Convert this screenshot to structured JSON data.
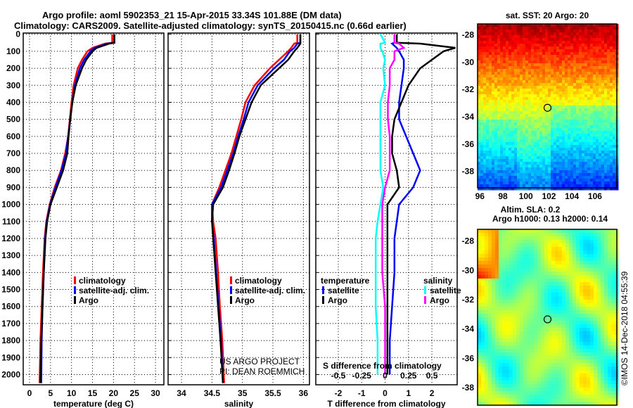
{
  "title_line1": "Argo profile: aoml 5902353_21 15-Apr-2015 33.34S 101.88E (DM data)",
  "title_line2": "Climatology: CARS2009. Satellite-adjusted climatology: synTS_20150415.nc (0.66d earlier)",
  "credit_line1": "US ARGO PROJECT",
  "credit_line2": "PI: DEAN ROEMMICH",
  "timestamp": "©IMOS 14-Dec-2018 04:55:39",
  "colors": {
    "climatology": "#ff0000",
    "satellite": "#0000ff",
    "argo": "#000000",
    "s_satellite": "#00ffff",
    "s_argo": "#ff00ff"
  },
  "chart_data": [
    {
      "type": "line",
      "name": "temperature",
      "xlabel": "temperature (deg C)",
      "ylabel": "depth",
      "xlim": [
        -1.5,
        32
      ],
      "ylim": [
        2060,
        0
      ],
      "xticks": [
        0,
        5,
        10,
        15,
        20,
        25,
        30
      ],
      "yticks": [
        0,
        100,
        200,
        300,
        400,
        500,
        600,
        700,
        800,
        900,
        1000,
        1100,
        1200,
        1300,
        1400,
        1500,
        1600,
        1700,
        1800,
        1900,
        2000
      ],
      "depth": [
        0,
        50,
        55,
        80,
        100,
        150,
        200,
        300,
        400,
        500,
        600,
        700,
        800,
        900,
        1000,
        1100,
        1200,
        1400,
        1600,
        1800,
        2050
      ],
      "series": [
        {
          "name": "climatology",
          "values": [
            19.7,
            19.7,
            18,
            15,
            13.8,
            12.5,
            11.5,
            10.5,
            10,
            9.6,
            9.2,
            8.5,
            7.5,
            6,
            4.8,
            4,
            3.6,
            3.2,
            2.9,
            2.6,
            2.4
          ]
        },
        {
          "name": "satellite-adj. clim.",
          "values": [
            20.2,
            20.2,
            18.5,
            15.5,
            14.5,
            13,
            12,
            10.8,
            10.2,
            9.7,
            9.2,
            8.7,
            7.6,
            6.2,
            4.9,
            4.1,
            3.7,
            3.4,
            3.1,
            2.9,
            2.8
          ]
        },
        {
          "name": "Argo",
          "values": [
            20.2,
            20.2,
            19,
            16,
            15,
            13.5,
            12.5,
            11,
            10.2,
            9.7,
            9.3,
            9,
            8,
            6.5,
            5,
            4.2,
            3.8,
            3.4,
            3.1,
            2.8,
            2.6
          ]
        }
      ],
      "legend": [
        "climatology",
        "satellite-adj. clim.",
        "Argo"
      ]
    },
    {
      "type": "line",
      "name": "salinity",
      "xlabel": "salinity",
      "xlim": [
        33.78,
        36.1
      ],
      "ylim": [
        2060,
        0
      ],
      "xticks": [
        34,
        34.5,
        35,
        35.5,
        36
      ],
      "depth": [
        0,
        50,
        55,
        80,
        100,
        150,
        200,
        300,
        400,
        500,
        600,
        700,
        800,
        900,
        1000,
        1100,
        1200,
        1400,
        1600,
        1800,
        2050
      ],
      "series": [
        {
          "name": "climatology",
          "values": [
            35.9,
            35.9,
            35.85,
            35.8,
            35.75,
            35.6,
            35.45,
            35.2,
            35.05,
            34.98,
            34.9,
            34.82,
            34.72,
            34.62,
            34.5,
            34.52,
            34.56,
            34.6,
            34.63,
            34.67,
            34.7
          ]
        },
        {
          "name": "satellite-adj. clim.",
          "values": [
            35.95,
            35.95,
            35.9,
            35.85,
            35.78,
            35.68,
            35.52,
            35.25,
            35.1,
            35.02,
            34.93,
            34.85,
            34.75,
            34.65,
            34.5,
            34.5,
            34.53,
            34.57,
            34.61,
            34.65,
            34.68
          ]
        },
        {
          "name": "Argo",
          "values": [
            35.95,
            35.95,
            35.95,
            35.9,
            35.85,
            35.75,
            35.6,
            35.3,
            35.15,
            35.05,
            34.95,
            34.87,
            34.78,
            34.68,
            34.52,
            34.5,
            34.52,
            34.56,
            34.6,
            34.64,
            34.68
          ]
        }
      ],
      "legend": [
        "climatology",
        "satellite-adj. clim.",
        "Argo"
      ]
    },
    {
      "type": "line",
      "name": "difference",
      "xlabel": "T difference from climatology",
      "x2label": "S difference from climatology",
      "xlim": [
        -2.96,
        3.08
      ],
      "x2lim": [
        -0.74,
        0.77
      ],
      "xticks": [
        -2,
        -1,
        0,
        1,
        2
      ],
      "x2ticks": [
        "-0.5",
        "-0.25",
        "0",
        "0.25",
        "0.5"
      ],
      "depth": [
        0,
        50,
        55,
        80,
        100,
        150,
        200,
        300,
        400,
        500,
        600,
        700,
        800,
        900,
        1000,
        1100,
        1200,
        1400,
        1600,
        1800,
        2000
      ],
      "series": [
        {
          "name": "T satellite",
          "axis": "T",
          "values": [
            0.4,
            0.4,
            0.3,
            0.5,
            0.6,
            0.8,
            0.8,
            0.7,
            0.6,
            0.6,
            0.9,
            1.2,
            1.5,
            1.2,
            0.6,
            0.5,
            0.4,
            0.4,
            0.3,
            0.2,
            0.2
          ]
        },
        {
          "name": "T Argo",
          "axis": "T",
          "values": [
            0.5,
            0.5,
            1.5,
            3,
            2.5,
            2,
            1.5,
            1,
            0.7,
            0.4,
            0.3,
            0.3,
            0.5,
            0.6,
            0.1,
            0.1,
            0.1,
            0.1,
            0.1,
            0.1,
            0.1
          ]
        },
        {
          "name": "S satellite",
          "axis": "S",
          "values": [
            -0.05,
            0,
            -0.05,
            -0.05,
            -0.03,
            0,
            -0.02,
            0,
            -0.05,
            -0.05,
            -0.05,
            -0.05,
            -0.05,
            -0.02,
            -0.05,
            -0.08,
            -0.1,
            -0.1,
            -0.1,
            -0.08,
            -0.08
          ]
        },
        {
          "name": "S Argo",
          "axis": "S",
          "values": [
            0.1,
            0.1,
            0.15,
            0.2,
            0.1,
            0.1,
            0.05,
            0.05,
            0.03,
            0.03,
            0.05,
            0.05,
            0.05,
            0,
            -0.03,
            -0.03,
            -0.03,
            -0.03,
            0,
            0,
            0
          ]
        }
      ],
      "legend_t_title": "temperature",
      "legend_s_title": "salinity",
      "legend_t": [
        "satellite",
        "Argo"
      ],
      "legend_s": [
        "satellite",
        "Argo"
      ]
    },
    {
      "type": "heatmap",
      "name": "sst-map",
      "title": "sat. SST: 20 Argo: 20",
      "xticks": [
        96,
        98,
        100,
        102,
        104,
        106
      ],
      "yticks": [
        -28,
        -30,
        -32,
        -34,
        -36,
        -38
      ],
      "xlim": [
        95.8,
        107.9
      ],
      "ylim": [
        -39.2,
        -27.2
      ],
      "marker": [
        101.88,
        -33.34
      ]
    },
    {
      "type": "heatmap",
      "name": "sla-map",
      "title": "Altim. SLA: 0.2",
      "subtitle": "Argo h1000: 0.13 h2000: 0.14",
      "xticks": [
        96,
        98,
        100,
        102,
        104,
        106
      ],
      "yticks": [
        -28,
        -30,
        -32,
        -34,
        -36,
        -38
      ],
      "xlim": [
        95.8,
        107.9
      ],
      "ylim": [
        -39.2,
        -27.2
      ],
      "marker": [
        101.88,
        -33.34
      ]
    }
  ]
}
